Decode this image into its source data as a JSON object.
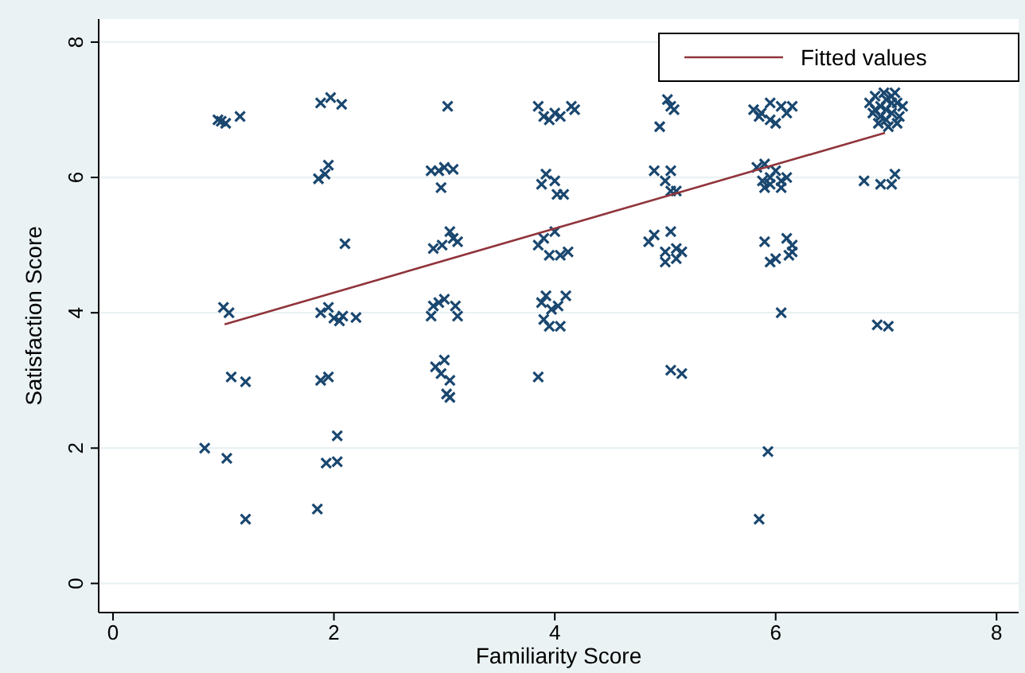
{
  "chart_data": {
    "type": "scatter",
    "xlabel": "Familiarity Score",
    "ylabel": "Satisfaction Score",
    "xlim": [
      -0.13,
      8.2
    ],
    "ylim": [
      -0.43,
      8.34
    ],
    "xticks": [
      0,
      2,
      4,
      6,
      8
    ],
    "yticks": [
      0,
      2,
      4,
      6,
      8
    ],
    "grid": "y",
    "legend": "top right",
    "series": [
      {
        "marker": "cross",
        "color": "#1a476f",
        "x": [
          0.95,
          0.98,
          1.02,
          1.15,
          1.0,
          1.05,
          1.07,
          1.2,
          0.83,
          1.03,
          1.2,
          1.88,
          1.97,
          2.07,
          1.86,
          1.92,
          1.95,
          2.1,
          1.88,
          1.95,
          2.0,
          2.05,
          2.08,
          2.2,
          1.88,
          1.95,
          1.93,
          2.03,
          2.03,
          1.85,
          3.03,
          2.88,
          2.95,
          3.0,
          3.08,
          2.97,
          2.9,
          2.98,
          3.05,
          3.08,
          3.12,
          2.9,
          2.95,
          3.0,
          3.1,
          3.12,
          2.88,
          2.92,
          3.0,
          2.97,
          3.05,
          3.02,
          3.05,
          3.85,
          3.9,
          3.95,
          4.0,
          4.05,
          4.15,
          4.18,
          3.88,
          3.92,
          4.0,
          4.02,
          4.08,
          3.85,
          3.9,
          4.0,
          3.95,
          4.05,
          4.12,
          3.88,
          3.92,
          3.97,
          4.03,
          4.1,
          3.9,
          3.95,
          4.05,
          3.85,
          5.02,
          5.05,
          5.08,
          4.95,
          4.9,
          5.05,
          5.0,
          5.05,
          5.1,
          4.85,
          4.9,
          5.0,
          5.1,
          5.05,
          5.1,
          5.0,
          5.15,
          5.05,
          5.15,
          5.8,
          5.85,
          5.95,
          6.05,
          6.1,
          6.15,
          5.87,
          5.95,
          6.0,
          5.83,
          5.9,
          5.95,
          6.0,
          6.05,
          6.1,
          5.88,
          5.9,
          5.95,
          6.05,
          5.9,
          6.1,
          6.0,
          5.95,
          6.15,
          6.15,
          6.12,
          6.05,
          5.93,
          5.85,
          6.85,
          6.9,
          6.95,
          7.0,
          7.05,
          7.1,
          7.15,
          6.88,
          6.95,
          7.0,
          7.05,
          7.1,
          7.12,
          6.9,
          7.0,
          7.05,
          6.98,
          7.08,
          6.93,
          7.02,
          6.8,
          6.95,
          7.05,
          7.08,
          6.92,
          7.02
        ],
        "values": [
          6.85,
          6.83,
          6.8,
          6.9,
          4.08,
          4.0,
          3.05,
          2.98,
          2.0,
          1.85,
          0.95,
          7.1,
          7.18,
          7.08,
          5.98,
          6.05,
          6.18,
          5.02,
          4.0,
          4.08,
          3.92,
          3.88,
          3.95,
          3.93,
          3.0,
          3.05,
          1.78,
          2.18,
          1.8,
          1.1,
          7.05,
          6.1,
          6.1,
          6.15,
          6.12,
          5.85,
          4.95,
          5.0,
          5.2,
          5.1,
          5.05,
          4.1,
          4.15,
          4.2,
          4.1,
          3.95,
          3.95,
          3.2,
          3.3,
          3.1,
          3.0,
          2.8,
          2.75,
          7.05,
          6.9,
          6.85,
          6.95,
          6.9,
          7.05,
          7.0,
          5.9,
          6.05,
          5.95,
          5.75,
          5.75,
          5.0,
          5.1,
          5.2,
          4.85,
          4.85,
          4.9,
          4.15,
          4.25,
          4.05,
          4.1,
          4.25,
          3.9,
          3.8,
          3.8,
          3.05,
          7.15,
          7.05,
          7.0,
          6.75,
          6.1,
          6.1,
          5.95,
          5.8,
          5.8,
          5.05,
          5.15,
          4.9,
          4.95,
          5.2,
          4.8,
          4.75,
          4.9,
          3.15,
          3.1,
          7.0,
          6.9,
          7.1,
          7.05,
          6.95,
          7.05,
          6.95,
          6.85,
          6.8,
          6.15,
          6.2,
          6.0,
          6.1,
          5.95,
          6.0,
          5.95,
          5.85,
          5.9,
          5.85,
          5.05,
          5.1,
          4.8,
          4.75,
          5.0,
          4.9,
          4.85,
          4.0,
          1.95,
          0.95,
          7.1,
          7.2,
          7.05,
          7.15,
          7.2,
          7.1,
          7.05,
          6.95,
          6.9,
          6.85,
          6.95,
          6.8,
          6.9,
          7.0,
          7.0,
          7.1,
          7.25,
          7.25,
          6.8,
          6.75,
          5.95,
          5.9,
          5.9,
          6.05,
          3.82,
          3.8
        ]
      },
      {
        "type": "line",
        "marker": "none",
        "name": "Fitted values",
        "color": "#90353b",
        "x": [
          1.01,
          6.99
        ],
        "values": [
          3.83,
          6.66
        ]
      }
    ]
  }
}
